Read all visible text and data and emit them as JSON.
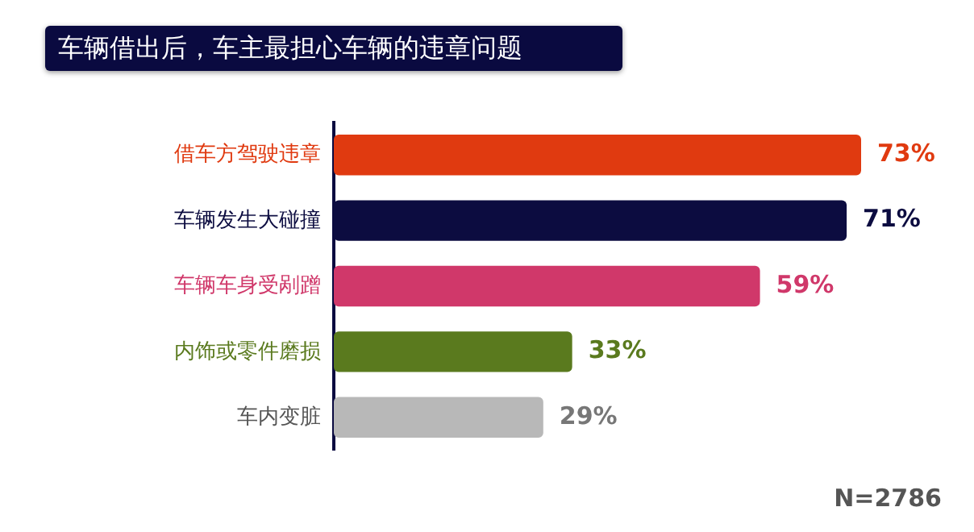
{
  "chart_data": {
    "type": "bar",
    "orientation": "horizontal",
    "title": "车辆借出后，车主最担心车辆的违章问题",
    "categories": [
      "借车方驾驶违章",
      "车辆发生大碰撞",
      "车辆车身受剐蹭",
      "内饰或零件磨损",
      "车内变脏"
    ],
    "values": [
      73,
      71,
      59,
      33,
      29
    ],
    "colors": [
      "#e03a10",
      "#0c0c40",
      "#d0386a",
      "#5a7a1e",
      "#b8b8b8"
    ],
    "value_labels": [
      "73%",
      "71%",
      "59%",
      "33%",
      "29%"
    ],
    "annotations": [
      "N=2786"
    ],
    "grid": false,
    "legend": false
  }
}
